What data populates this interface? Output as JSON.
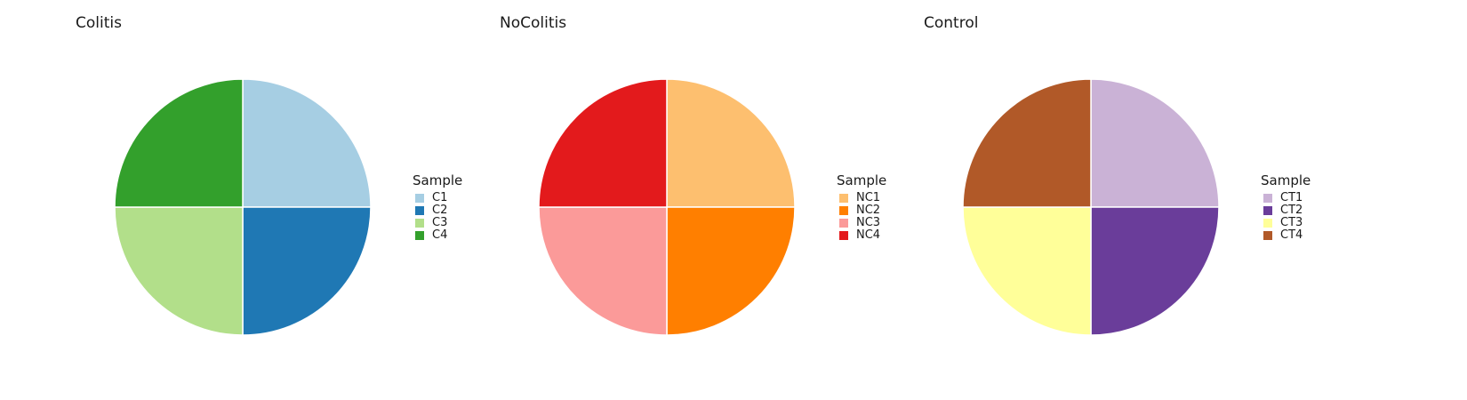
{
  "chart_data": [
    {
      "type": "pie",
      "title": "Colitis",
      "legend_title": "Sample",
      "legend_position": "right",
      "categories": [
        "C1",
        "C2",
        "C3",
        "C4"
      ],
      "values": [
        25,
        25,
        25,
        25
      ],
      "colors": [
        "#a6cee3",
        "#1f78b4",
        "#b2df8a",
        "#33a02c"
      ]
    },
    {
      "type": "pie",
      "title": "NoColitis",
      "legend_title": "Sample",
      "legend_position": "right",
      "categories": [
        "NC1",
        "NC2",
        "NC3",
        "NC4"
      ],
      "values": [
        25,
        25,
        25,
        25
      ],
      "colors": [
        "#fdbf6f",
        "#ff7f00",
        "#fb9a99",
        "#e31a1c"
      ]
    },
    {
      "type": "pie",
      "title": "Control",
      "legend_title": "Sample",
      "legend_position": "right",
      "categories": [
        "CT1",
        "CT2",
        "CT3",
        "CT4"
      ],
      "values": [
        25,
        25,
        25,
        25
      ],
      "colors": [
        "#cab2d6",
        "#6a3d9a",
        "#ffff99",
        "#b15928"
      ]
    }
  ]
}
